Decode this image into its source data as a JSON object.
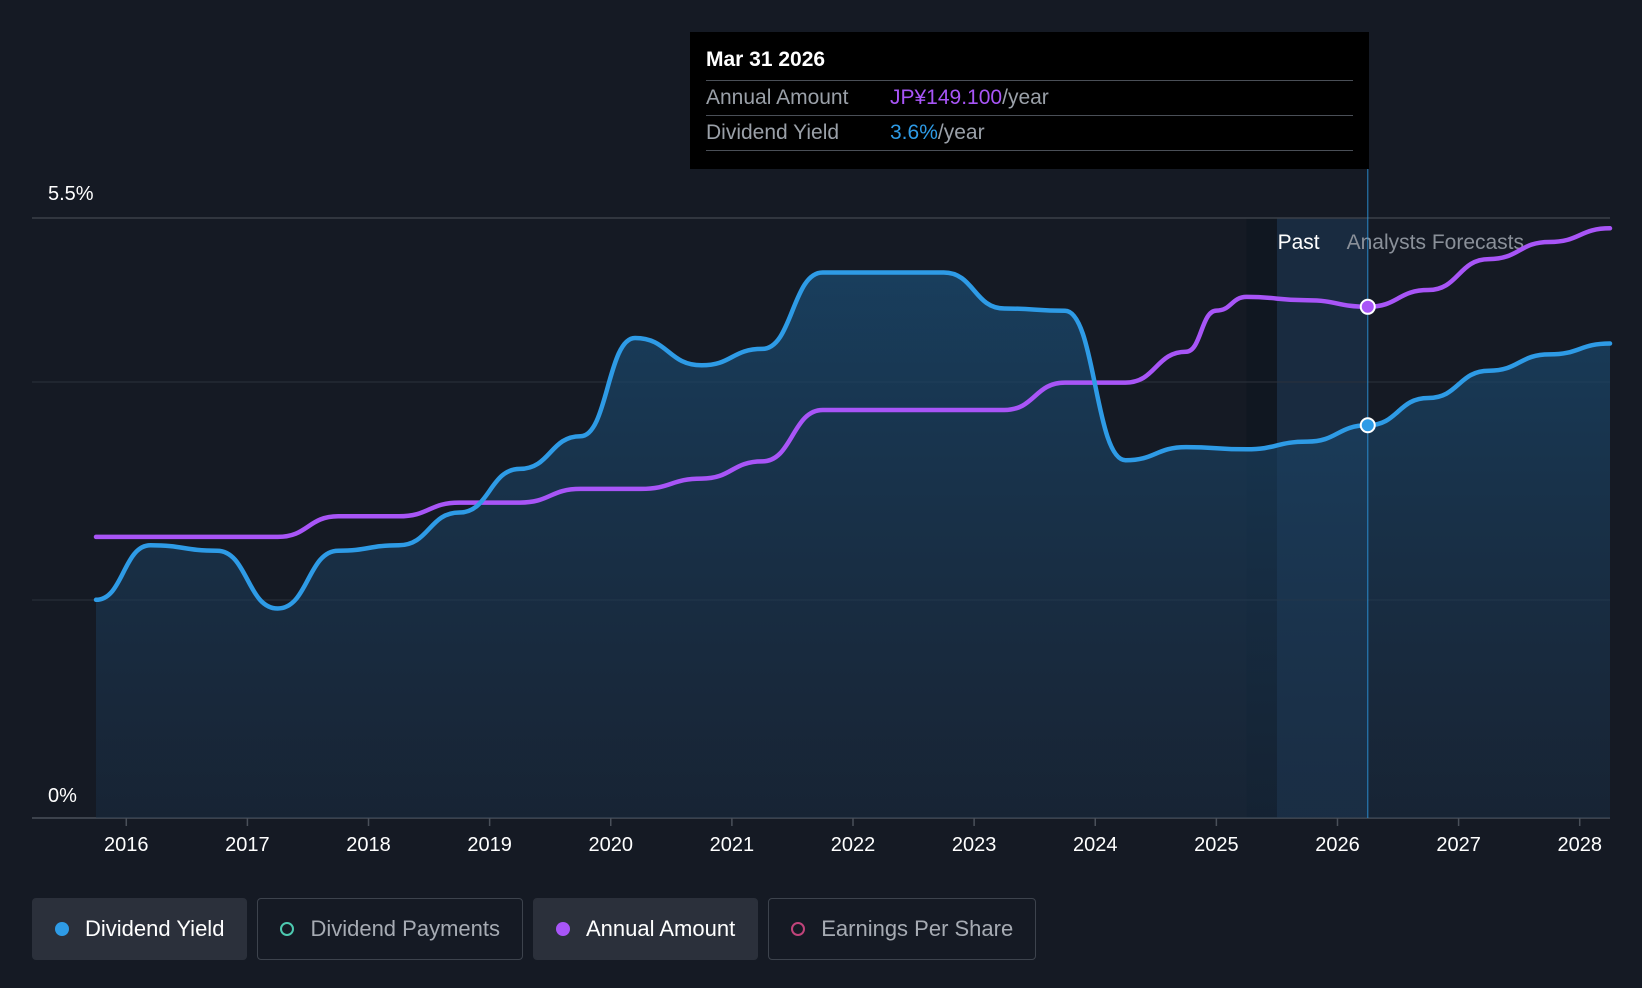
{
  "tooltip": {
    "date": "Mar 31 2026",
    "annual_label": "Annual Amount",
    "annual_value": "JP¥149.100",
    "annual_unit": "/year",
    "yield_label": "Dividend Yield",
    "yield_value": "3.6%",
    "yield_unit": "/year"
  },
  "legend": [
    {
      "label": "Dividend Yield",
      "active": true,
      "color": "#2e9be6"
    },
    {
      "label": "Dividend Payments",
      "active": false,
      "color": "#4dc9b0"
    },
    {
      "label": "Annual Amount",
      "active": true,
      "color": "#a855f7"
    },
    {
      "label": "Earnings Per Share",
      "active": false,
      "color": "#c0437a"
    }
  ],
  "colors": {
    "background": "#151a24",
    "yield": "#2e9be6",
    "annual": "#a855f7",
    "forecast_band": "#1e3550"
  },
  "chart_data": {
    "type": "line",
    "title": "",
    "xlabel": "",
    "ylabel": "",
    "y_axis_labels": [
      "5.5%",
      "0%"
    ],
    "ylim": [
      0,
      5.5
    ],
    "xlim": [
      2015.75,
      2028.25
    ],
    "x_ticks": [
      2016,
      2017,
      2018,
      2019,
      2020,
      2021,
      2022,
      2023,
      2024,
      2025,
      2026,
      2027,
      2028
    ],
    "regions": {
      "past_label": "Past",
      "forecast_label": "Analysts Forecasts",
      "past_end": 2025.25,
      "forecast_start": 2025.5,
      "cursor": 2026.25
    },
    "series": [
      {
        "name": "Dividend Yield",
        "unit": "%",
        "x": [
          2015.75,
          2016.2,
          2016.75,
          2017.25,
          2017.75,
          2018.25,
          2018.75,
          2019.25,
          2019.75,
          2020.2,
          2020.75,
          2021.25,
          2021.75,
          2022.25,
          2022.75,
          2023.25,
          2023.75,
          2024.25,
          2024.75,
          2025.25,
          2025.75,
          2026.25,
          2026.75,
          2027.25,
          2027.75,
          2028.25
        ],
        "values": [
          2.0,
          2.5,
          2.45,
          1.92,
          2.45,
          2.5,
          2.8,
          3.2,
          3.5,
          4.4,
          4.15,
          4.3,
          5.0,
          5.0,
          5.0,
          4.67,
          4.65,
          3.28,
          3.4,
          3.38,
          3.45,
          3.6,
          3.85,
          4.1,
          4.25,
          4.35
        ]
      },
      {
        "name": "Annual Amount",
        "unit": "JP¥",
        "x": [
          2015.75,
          2016.5,
          2017.25,
          2017.75,
          2018.25,
          2018.75,
          2019.25,
          2019.75,
          2020.25,
          2020.75,
          2021.25,
          2021.75,
          2022.25,
          2022.75,
          2023.25,
          2023.75,
          2024.25,
          2024.75,
          2025.0,
          2025.25,
          2025.75,
          2026.25,
          2026.75,
          2027.25,
          2027.75,
          2028.25
        ],
        "values": [
          82,
          82,
          82,
          88,
          88,
          92,
          92,
          96,
          96,
          99,
          104,
          119,
          119,
          119,
          119,
          127,
          127,
          136,
          148,
          152,
          151,
          149.1,
          154,
          163,
          168,
          172
        ]
      }
    ]
  }
}
